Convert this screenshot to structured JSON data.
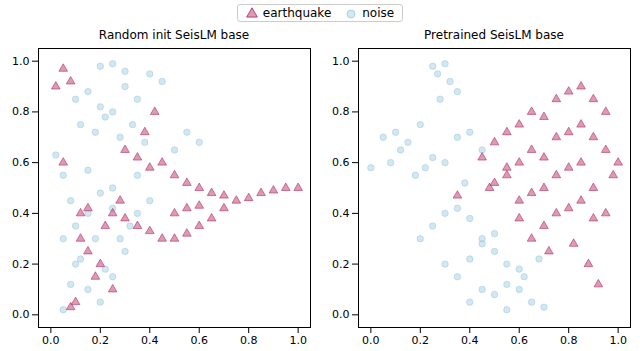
{
  "chart_data": [
    {
      "type": "scatter",
      "title": "Random init SeisLM base",
      "legend": "upper center",
      "grid": false,
      "xlim": [
        -0.05,
        1.05
      ],
      "ylim": [
        -0.05,
        1.05
      ],
      "xticks": [
        {
          "value": 0,
          "label": "0.0"
        },
        {
          "value": 0.2,
          "label": "0.2"
        },
        {
          "value": 0.4,
          "label": "0.4"
        },
        {
          "value": 0.6,
          "label": "0.6"
        },
        {
          "value": 0.8,
          "label": "0.8"
        },
        {
          "value": 1,
          "label": "1.0"
        }
      ],
      "yticks": [
        {
          "value": 0,
          "label": "0.0"
        },
        {
          "value": 0.2,
          "label": "0.2"
        },
        {
          "value": 0.4,
          "label": "0.4"
        },
        {
          "value": 0.6,
          "label": "0.6"
        },
        {
          "value": 0.8,
          "label": "0.8"
        },
        {
          "value": 1,
          "label": "1.0"
        }
      ],
      "series": [
        {
          "name": "noise",
          "color": "#9ecae1",
          "marker": "circle",
          "x": [
            0.1,
            0.15,
            0.2,
            0.25,
            0.3,
            0.35,
            0.4,
            0.45,
            0.12,
            0.18,
            0.22,
            0.28,
            0.33,
            0.38,
            0.2,
            0.25,
            0.3,
            0.02,
            0.08,
            0.05,
            0.1,
            0.15,
            0.2,
            0.25,
            0.3,
            0.05,
            0.1,
            0.15,
            0.2,
            0.25,
            0.08,
            0.12,
            0.18,
            0.22,
            0.28,
            0.32,
            0.35,
            0.4,
            0.5,
            0.55,
            0.6,
            0.05,
            0.15,
            0.25,
            0.35
          ],
          "y": [
            0.85,
            0.88,
            0.82,
            0.8,
            0.9,
            0.85,
            0.95,
            0.92,
            0.75,
            0.72,
            0.78,
            0.7,
            0.75,
            0.68,
            0.98,
            0.99,
            0.96,
            0.63,
            0.45,
            0.3,
            0.2,
            0.1,
            0.05,
            0.15,
            0.25,
            0.02,
            0.35,
            0.4,
            0.48,
            0.42,
            0.12,
            0.22,
            0.3,
            0.18,
            0.3,
            0.35,
            0.4,
            0.45,
            0.65,
            0.72,
            0.68,
            0.55,
            0.57,
            0.5,
            0.55
          ]
        },
        {
          "name": "earthquake",
          "color": "#b0225a",
          "marker": "triangle",
          "x": [
            0.02,
            0.05,
            0.08,
            0.12,
            0.15,
            0.25,
            0.3,
            0.35,
            0.4,
            0.45,
            0.5,
            0.55,
            0.6,
            0.65,
            0.7,
            0.75,
            0.8,
            0.85,
            0.9,
            0.95,
            1.0,
            0.45,
            0.5,
            0.55,
            0.6,
            0.65,
            0.7,
            0.3,
            0.35,
            0.4,
            0.25,
            0.2,
            0.15,
            0.1,
            0.12,
            0.18,
            0.22,
            0.28,
            0.05,
            0.08,
            0.5,
            0.55,
            0.6,
            0.38,
            0.42
          ],
          "y": [
            0.9,
            0.97,
            0.92,
            0.4,
            0.42,
            0.4,
            0.38,
            0.35,
            0.33,
            0.3,
            0.3,
            0.32,
            0.35,
            0.38,
            0.42,
            0.45,
            0.46,
            0.48,
            0.49,
            0.5,
            0.5,
            0.6,
            0.55,
            0.52,
            0.5,
            0.48,
            0.47,
            0.65,
            0.62,
            0.58,
            0.1,
            0.2,
            0.25,
            0.05,
            0.3,
            0.15,
            0.35,
            0.45,
            0.6,
            0.03,
            0.4,
            0.42,
            0.43,
            0.72,
            0.8
          ]
        }
      ]
    },
    {
      "type": "scatter",
      "title": "Pretrained SeisLM base",
      "grid": false,
      "xlim": [
        -0.05,
        1.05
      ],
      "ylim": [
        -0.05,
        1.05
      ],
      "xticks": [
        {
          "value": 0,
          "label": "0.0"
        },
        {
          "value": 0.2,
          "label": "0.2"
        },
        {
          "value": 0.4,
          "label": "0.4"
        },
        {
          "value": 0.6,
          "label": "0.6"
        },
        {
          "value": 0.8,
          "label": "0.8"
        },
        {
          "value": 1,
          "label": "1.0"
        }
      ],
      "yticks": [
        {
          "value": 0,
          "label": "0.0"
        },
        {
          "value": 0.2,
          "label": "0.2"
        },
        {
          "value": 0.4,
          "label": "0.4"
        },
        {
          "value": 0.6,
          "label": "0.6"
        },
        {
          "value": 0.8,
          "label": "0.8"
        },
        {
          "value": 1,
          "label": "1.0"
        }
      ],
      "series": [
        {
          "name": "noise",
          "color": "#9ecae1",
          "marker": "circle",
          "x": [
            0.25,
            0.27,
            0.3,
            0.32,
            0.35,
            0.28,
            0.05,
            0.1,
            0.15,
            0.2,
            0.25,
            0.3,
            0.35,
            0.4,
            0.45,
            0.0,
            0.08,
            0.12,
            0.18,
            0.22,
            0.38,
            0.2,
            0.25,
            0.3,
            0.35,
            0.4,
            0.45,
            0.5,
            0.55,
            0.6,
            0.65,
            0.7,
            0.3,
            0.35,
            0.4,
            0.45,
            0.5,
            0.55,
            0.6,
            0.4,
            0.45,
            0.5,
            0.55,
            0.62,
            0.68
          ],
          "y": [
            0.98,
            0.95,
            0.99,
            0.92,
            0.88,
            0.85,
            0.7,
            0.72,
            0.68,
            0.75,
            0.62,
            0.6,
            0.7,
            0.72,
            0.65,
            0.58,
            0.6,
            0.65,
            0.55,
            0.58,
            0.52,
            0.3,
            0.35,
            0.4,
            0.42,
            0.38,
            0.3,
            0.25,
            0.2,
            0.1,
            0.05,
            0.03,
            0.2,
            0.15,
            0.22,
            0.28,
            0.32,
            0.12,
            0.18,
            0.05,
            0.1,
            0.08,
            0.02,
            0.15,
            0.22
          ]
        },
        {
          "name": "earthquake",
          "color": "#b0225a",
          "marker": "triangle",
          "x": [
            0.45,
            0.5,
            0.55,
            0.6,
            0.65,
            0.7,
            0.75,
            0.8,
            0.85,
            0.9,
            0.95,
            1.0,
            0.5,
            0.55,
            0.6,
            0.65,
            0.7,
            0.75,
            0.8,
            0.85,
            0.9,
            0.95,
            0.6,
            0.65,
            0.7,
            0.75,
            0.8,
            0.85,
            0.9,
            0.7,
            0.75,
            0.8,
            0.85,
            0.9,
            0.95,
            0.98,
            0.55,
            0.6,
            0.65,
            0.72,
            0.82,
            0.88,
            0.92,
            0.35,
            0.48
          ],
          "y": [
            0.62,
            0.68,
            0.72,
            0.75,
            0.8,
            0.78,
            0.85,
            0.88,
            0.9,
            0.85,
            0.8,
            0.6,
            0.52,
            0.55,
            0.6,
            0.65,
            0.62,
            0.7,
            0.72,
            0.75,
            0.7,
            0.65,
            0.45,
            0.48,
            0.5,
            0.55,
            0.58,
            0.6,
            0.5,
            0.35,
            0.4,
            0.42,
            0.45,
            0.38,
            0.4,
            0.55,
            0.58,
            0.38,
            0.3,
            0.25,
            0.28,
            0.2,
            0.12,
            0.47,
            0.5
          ]
        }
      ]
    }
  ]
}
